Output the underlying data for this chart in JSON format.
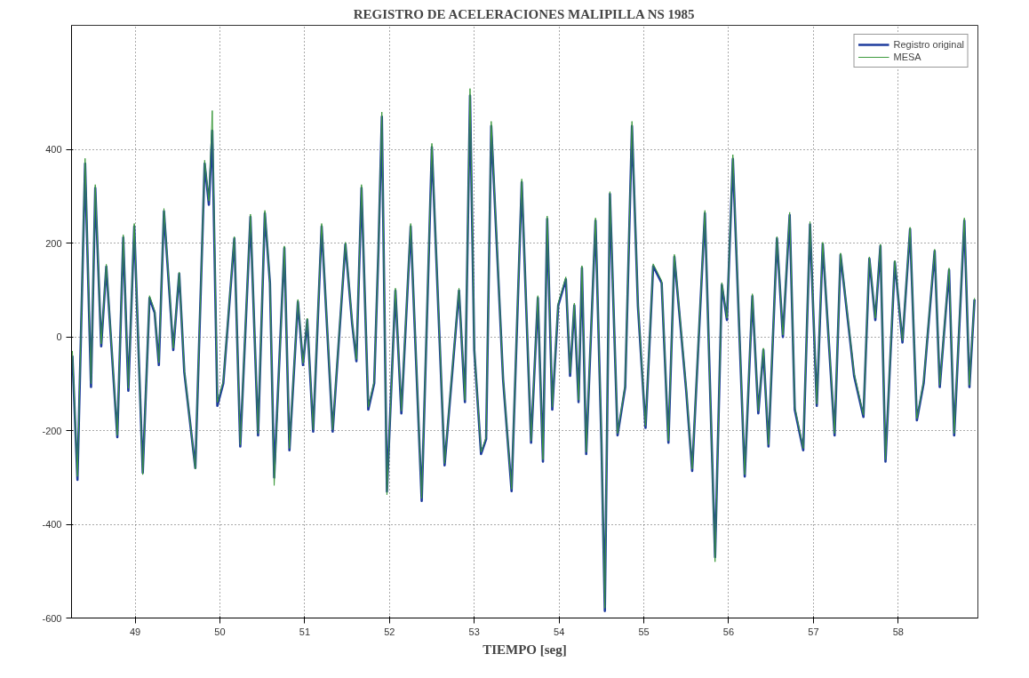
{
  "chart_data": {
    "type": "line",
    "title": "REGISTRO DE ACELERACIONES MALIPILLA NS 1985",
    "xlabel": "TIEMPO [seg]",
    "xlim": [
      48.25,
      58.94
    ],
    "xticks": [
      49,
      50,
      51,
      52,
      53,
      54,
      55,
      56,
      57,
      58
    ],
    "ylim": [
      -600,
      665
    ],
    "yticks": [
      -600,
      -400,
      -200,
      0,
      200,
      400
    ],
    "grid": true,
    "legend": "top right",
    "line_style": "solid",
    "marker": "none",
    "x": [
      48.26,
      48.32,
      48.41,
      48.48,
      48.53,
      48.6,
      48.66,
      48.79,
      48.86,
      48.92,
      48.99,
      49.09,
      49.17,
      49.23,
      49.28,
      49.34,
      49.45,
      49.52,
      49.58,
      49.71,
      49.82,
      49.87,
      49.91,
      49.97,
      50.04,
      50.17,
      50.24,
      50.36,
      50.45,
      50.53,
      50.59,
      50.64,
      50.76,
      50.82,
      50.92,
      50.98,
      51.03,
      51.1,
      51.2,
      51.33,
      51.48,
      51.56,
      51.61,
      51.67,
      51.75,
      51.82,
      51.87,
      51.91,
      51.97,
      52.07,
      52.14,
      52.25,
      52.38,
      52.5,
      52.65,
      52.82,
      52.89,
      52.95,
      53.0,
      53.08,
      53.14,
      53.2,
      53.34,
      53.44,
      53.56,
      53.67,
      53.75,
      53.81,
      53.86,
      53.92,
      53.99,
      54.08,
      54.13,
      54.18,
      54.23,
      54.27,
      54.32,
      54.43,
      54.5,
      54.54,
      54.6,
      54.69,
      54.78,
      54.86,
      54.93,
      55.02,
      55.11,
      55.21,
      55.29,
      55.36,
      55.5,
      55.57,
      55.72,
      55.84,
      55.92,
      55.98,
      56.05,
      56.19,
      56.28,
      56.35,
      56.41,
      56.47,
      56.57,
      56.64,
      56.72,
      56.78,
      56.88,
      56.96,
      57.04,
      57.11,
      57.25,
      57.32,
      57.48,
      57.59,
      57.66,
      57.73,
      57.79,
      57.85,
      57.96,
      58.05,
      58.14,
      58.22,
      58.3,
      58.43,
      58.49,
      58.6,
      58.66,
      58.78,
      58.84,
      58.9
    ],
    "series": [
      {
        "name": "Registro original",
        "color": "#1f3c9e",
        "values": [
          -40,
          -305,
          370,
          -107,
          318,
          -20,
          150,
          -214,
          212,
          -115,
          236,
          -290,
          83,
          52,
          -60,
          268,
          -28,
          135,
          -75,
          -280,
          370,
          282,
          440,
          -147,
          -99,
          210,
          -234,
          256,
          -210,
          264,
          115,
          -300,
          190,
          -242,
          75,
          -60,
          36,
          -202,
          236,
          -202,
          198,
          28,
          -52,
          318,
          -155,
          -99,
          187,
          470,
          -330,
          99,
          -163,
          236,
          -350,
          405,
          -274,
          99,
          -139,
          515,
          -28,
          -250,
          -218,
          450,
          -91,
          -329,
          330,
          -226,
          83,
          -266,
          252,
          -155,
          67,
          123,
          -83,
          67,
          -139,
          147,
          -250,
          248,
          -226,
          -585,
          305,
          -210,
          -107,
          450,
          67,
          -194,
          151,
          115,
          -226,
          171,
          -115,
          -286,
          264,
          -470,
          111,
          36,
          380,
          -298,
          87,
          -163,
          -28,
          -234,
          210,
          0,
          260,
          -155,
          -242,
          240,
          -147,
          198,
          -210,
          175,
          -83,
          -171,
          167,
          36,
          194,
          -266,
          160,
          -12,
          230,
          -178,
          -99,
          183,
          -107,
          143,
          -210,
          248,
          -107,
          80
        ]
      },
      {
        "name": "MESA",
        "color": "#3c9a3c",
        "values": [
          -30,
          -298,
          381,
          -100,
          325,
          -15,
          155,
          -210,
          218,
          -110,
          242,
          -294,
          88,
          56,
          -55,
          274,
          -24,
          138,
          -70,
          -282,
          377,
          290,
          483,
          -140,
          -95,
          214,
          -230,
          262,
          -206,
          270,
          118,
          -317,
          194,
          -238,
          80,
          -56,
          40,
          -198,
          242,
          -198,
          202,
          32,
          -48,
          325,
          -150,
          -95,
          192,
          480,
          -337,
          104,
          -158,
          242,
          -345,
          413,
          -270,
          104,
          -135,
          530,
          -24,
          -246,
          -214,
          460,
          -88,
          -325,
          337,
          -222,
          88,
          -262,
          258,
          -150,
          72,
          128,
          -78,
          72,
          -135,
          152,
          -246,
          254,
          -222,
          -579,
          310,
          -206,
          -103,
          460,
          72,
          -190,
          156,
          120,
          -222,
          176,
          -110,
          -282,
          270,
          -480,
          116,
          40,
          389,
          -294,
          92,
          -158,
          -24,
          -230,
          214,
          4,
          266,
          -150,
          -238,
          246,
          -143,
          202,
          -206,
          179,
          -78,
          -167,
          171,
          40,
          198,
          -262,
          163,
          -8,
          234,
          -174,
          -95,
          187,
          -103,
          147,
          -206,
          254,
          -103,
          83
        ]
      }
    ]
  }
}
